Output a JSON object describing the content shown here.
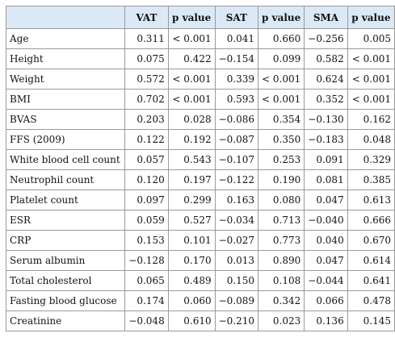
{
  "table": {
    "header": [
      "VAT",
      "p value",
      "SAT",
      "p value",
      "SMA",
      "p value"
    ],
    "rows": [
      [
        "Age",
        "0.311",
        "< 0.001",
        "0.041",
        "0.660",
        "−0.256",
        "0.005"
      ],
      [
        "Height",
        "0.075",
        "0.422",
        "−0.154",
        "0.099",
        "0.582",
        "< 0.001"
      ],
      [
        "Weight",
        "0.572",
        "< 0.001",
        "0.339",
        "< 0.001",
        "0.624",
        "< 0.001"
      ],
      [
        "BMI",
        "0.702",
        "< 0.001",
        "0.593",
        "< 0.001",
        "0.352",
        "< 0.001"
      ],
      [
        "BVAS",
        "0.203",
        "0.028",
        "−0.086",
        "0.354",
        "−0.130",
        "0.162"
      ],
      [
        "FFS (2009)",
        "0.122",
        "0.192",
        "−0.087",
        "0.350",
        "−0.183",
        "0.048"
      ],
      [
        "White blood cell count",
        "0.057",
        "0.543",
        "−0.107",
        "0.253",
        "0.091",
        "0.329"
      ],
      [
        "Neutrophil count",
        "0.120",
        "0.197",
        "−0.122",
        "0.190",
        "0.081",
        "0.385"
      ],
      [
        "Platelet count",
        "0.097",
        "0.299",
        "0.163",
        "0.080",
        "0.047",
        "0.613"
      ],
      [
        "ESR",
        "0.059",
        "0.527",
        "−0.034",
        "0.713",
        "−0.040",
        "0.666"
      ],
      [
        "CRP",
        "0.153",
        "0.101",
        "−0.027",
        "0.773",
        "0.040",
        "0.670"
      ],
      [
        "Serum albumin",
        "−0.128",
        "0.170",
        "0.013",
        "0.890",
        "0.047",
        "0.614"
      ],
      [
        "Total cholesterol",
        "0.065",
        "0.489",
        "0.150",
        "0.108",
        "−0.044",
        "0.641"
      ],
      [
        "Fasting blood glucose",
        "0.174",
        "0.060",
        "−0.089",
        "0.342",
        "0.066",
        "0.478"
      ],
      [
        "Creatinine",
        "−0.048",
        "0.610",
        "−0.210",
        "0.023",
        "0.136",
        "0.145"
      ]
    ]
  }
}
